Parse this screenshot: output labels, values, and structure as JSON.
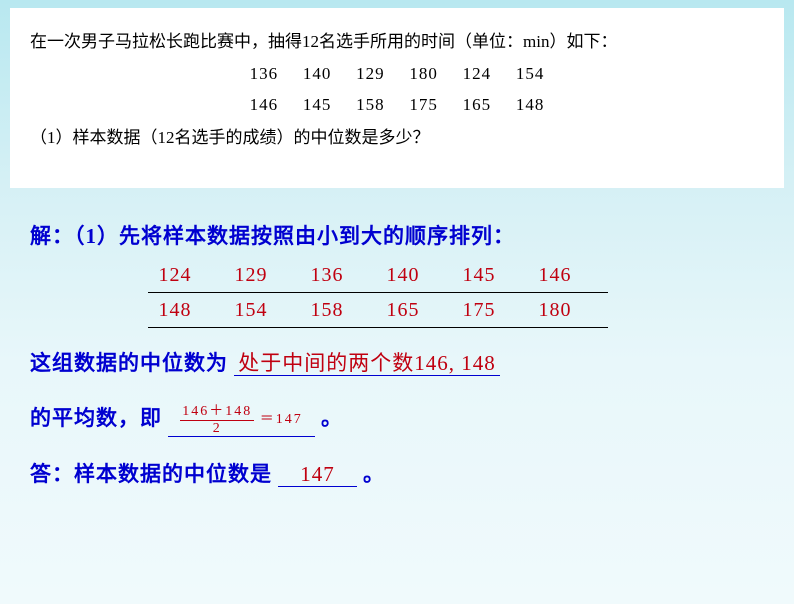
{
  "problem": {
    "intro": "在一次男子马拉松长跑比赛中，抽得12名选手所用的时间（单位：min）如下：",
    "row1": [
      "136",
      "140",
      "129",
      "180",
      "124",
      "154"
    ],
    "row2": [
      "146",
      "145",
      "158",
      "175",
      "165",
      "148"
    ],
    "q1": "（1）样本数据（12名选手的成绩）的中位数是多少？"
  },
  "solution": {
    "head": "解：（1）先将样本数据按照由小到大的顺序排列：",
    "sorted1": [
      "124",
      "129",
      "136",
      "140",
      "145",
      "146"
    ],
    "sorted2": [
      "148",
      "154",
      "158",
      "165",
      "175",
      "180"
    ],
    "line1_prefix": "这组数据的中位数为",
    "line1_fill": "处于中间的两个数146, 148",
    "line2_prefix": "的平均数，即",
    "formula_num": "146＋148",
    "formula_den": "2",
    "formula_eq": "＝147",
    "line2_suffix": "。",
    "line3_prefix": "答：样本数据的中位数是",
    "line3_ans": "147",
    "line3_suffix": "。"
  },
  "colors": {
    "blue": "#0000d0",
    "red": "#c00010",
    "bg_top": "#b8e8f0",
    "bg_bottom": "#f0fafc",
    "white": "#ffffff",
    "black": "#000000"
  }
}
